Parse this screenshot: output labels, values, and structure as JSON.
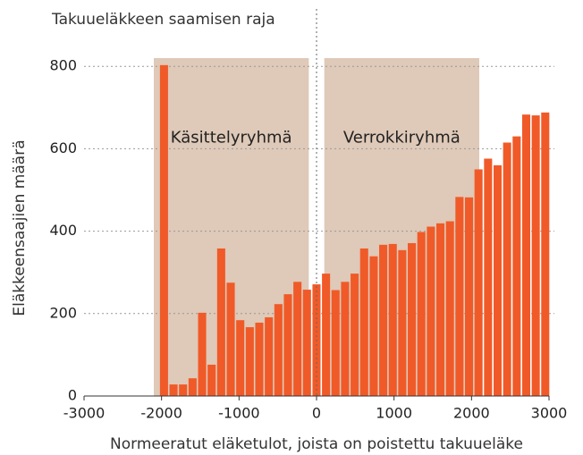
{
  "chart_data": {
    "type": "histogram",
    "annotation": "Takuueläkkeen saamisen raja",
    "annotation_x": 0,
    "x_label": "Normeeratut eläketulot, joista on poistettu takuueläke",
    "y_label": "Eläkkeensaajien määrä",
    "color": "#f05a28",
    "region_color": "#dfc9b8",
    "regions": [
      {
        "label": "Käsittelyryhmä",
        "x": [
          -2100,
          -100
        ]
      },
      {
        "label": "Verrokkiryhmä",
        "x": [
          100,
          2100
        ]
      }
    ],
    "bins": [
      -2030,
      -1907,
      -1784,
      -1661,
      -1538,
      -1415,
      -1292,
      -1169,
      -1046,
      -923,
      -800,
      -677,
      -554,
      -431,
      -308,
      -185,
      -62,
      61,
      184,
      307,
      430,
      553,
      676,
      799,
      922,
      1045,
      1168,
      1291,
      1414,
      1537,
      1660,
      1783,
      1906,
      2029,
      2152,
      2275,
      2398,
      2521,
      2644,
      2767,
      2890,
      3013
    ],
    "counts": [
      803,
      28,
      28,
      43,
      202,
      76,
      358,
      275,
      184,
      167,
      178,
      191,
      223,
      247,
      277,
      258,
      271,
      297,
      257,
      277,
      297,
      358,
      339,
      367,
      369,
      354,
      371,
      398,
      411,
      419,
      424,
      483,
      482,
      550,
      576,
      560,
      615,
      630,
      683,
      681,
      688
    ],
    "xlim": [
      -3000,
      3000
    ],
    "xticks": [
      -3000,
      -2000,
      -1000,
      0,
      1000,
      2000,
      3000
    ],
    "ylim": [
      0,
      820
    ],
    "yticks": [
      0,
      200,
      400,
      600,
      800
    ],
    "grid": true
  }
}
